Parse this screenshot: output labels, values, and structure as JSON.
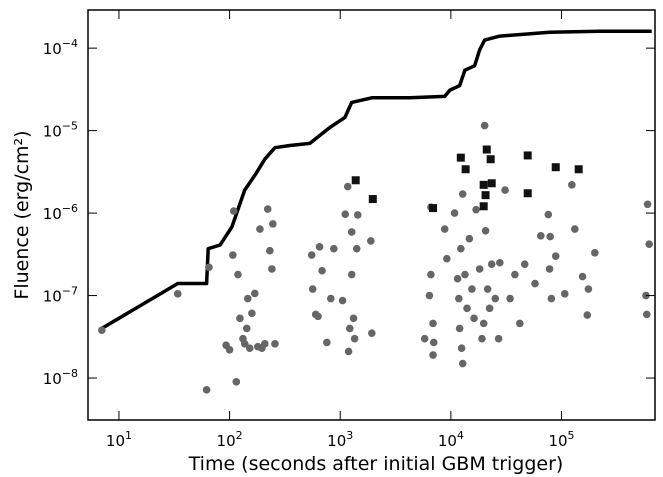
{
  "chart_data": {
    "type": "scatter",
    "x_label": "Time (seconds after initial GBM trigger)",
    "y_label": "Fluence (erg/cm²)",
    "xscale": "log",
    "yscale": "log",
    "xlim": [
      5.25,
      700000
    ],
    "ylim": [
      3.1e-09,
      0.00029
    ],
    "xticks": [
      {
        "value": 10,
        "label": "10^1"
      },
      {
        "value": 100,
        "label": "10^2"
      },
      {
        "value": 1000,
        "label": "10^3"
      },
      {
        "value": 10000,
        "label": "10^4"
      },
      {
        "value": 100000,
        "label": "10^5"
      }
    ],
    "yticks": [
      {
        "value": 1e-08,
        "label": "10^−8"
      },
      {
        "value": 1e-07,
        "label": "10^−7"
      },
      {
        "value": 1e-06,
        "label": "10^−6"
      },
      {
        "value": 1e-05,
        "label": "10^−5"
      },
      {
        "value": 0.0001,
        "label": "10^−4"
      }
    ],
    "series": [
      {
        "kind": "line",
        "color": "#000000",
        "x": [
          7,
          34,
          62,
          64,
          82,
          105,
          137,
          173,
          208,
          257,
          351,
          531,
          805,
          1100,
          1270,
          1930,
          4250,
          8800,
          9800,
          12000,
          13400,
          16400,
          18200,
          20200,
          27700,
          78000,
          221000,
          653000
        ],
        "values": [
          4e-08,
          1.4e-07,
          1.4e-07,
          3.7e-07,
          4.1e-07,
          6.8e-07,
          1.9e-06,
          3e-06,
          4.5e-06,
          6.2e-06,
          6.6e-06,
          7e-06,
          1.09e-05,
          1.44e-05,
          2.2e-05,
          2.5e-05,
          2.5e-05,
          2.6e-05,
          3.1e-05,
          3.5e-05,
          5.4e-05,
          6.1e-05,
          9.5e-05,
          0.000125,
          0.00014,
          0.000156,
          0.00016,
          0.00016
        ]
      },
      {
        "kind": "scatter",
        "marker": "circle",
        "color": "#666666",
        "x": [
          7,
          34,
          62,
          65,
          93,
          100,
          115,
          107,
          109,
          119,
          124,
          132,
          137,
          143,
          146,
          152,
          159,
          169,
          180,
          188,
          196,
          208,
          221,
          231,
          241,
          246,
          257,
          552,
          564,
          600,
          630,
          650,
          685,
          757,
          822,
          875,
          1050,
          1110,
          1170,
          1190,
          1220,
          1270,
          1270,
          1320,
          1350,
          1410,
          1440,
          1930,
          1890,
          5800,
          6600,
          6600,
          6900,
          6900,
          7000,
          6400,
          8800,
          9200,
          10800,
          11500,
          11800,
          12000,
          12500,
          12800,
          12300,
          12800,
          13400,
          14000,
          14700,
          15500,
          16200,
          16900,
          18200,
          19100,
          19800,
          20200,
          20600,
          21500,
          22400,
          23400,
          25200,
          27000,
          27700,
          30900,
          34300,
          37900,
          42000,
          46500,
          57600,
          65000,
          76000,
          78000,
          79000,
          81000,
          88700,
          107000,
          124000,
          132000,
          155000,
          171000,
          175000,
          200000,
          600000,
          620000,
          580000,
          590000
        ],
        "values": [
          3.8e-08,
          1.05e-07,
          7.2e-09,
          2.2e-07,
          2.5e-08,
          2.2e-08,
          9e-09,
          3.1e-07,
          1.06e-06,
          1.8e-07,
          5.3e-08,
          3e-08,
          2.6e-08,
          4e-08,
          9.2e-08,
          2.3e-08,
          6.1e-08,
          1.06e-07,
          2.4e-08,
          6.4e-07,
          2.3e-08,
          2.6e-08,
          1.12e-06,
          3.5e-07,
          2.1e-07,
          7.4e-07,
          2.6e-08,
          3.1e-07,
          1.2e-07,
          5.9e-08,
          5.6e-08,
          3.9e-07,
          2e-07,
          2.7e-08,
          9.2e-08,
          3.7e-07,
          8.7e-08,
          9.7e-07,
          2.1e-06,
          2.1e-08,
          4e-08,
          1.8e-07,
          5.9e-07,
          5.3e-08,
          3e-08,
          3.7e-07,
          9.5e-07,
          3.5e-08,
          4.6e-07,
          3e-08,
          1.18e-06,
          1.8e-07,
          1.9e-08,
          4.6e-08,
          2.7e-08,
          1e-07,
          6.4e-07,
          2.8e-07,
          1e-06,
          1.6e-07,
          9.2e-08,
          4e-08,
          2.3e-08,
          1.5e-08,
          3.7e-07,
          1.7e-06,
          1.8e-07,
          7e-08,
          4.9e-07,
          1.2e-07,
          5.3e-08,
          1.1e-06,
          2.1e-07,
          3e-08,
          4.6e-08,
          1.15e-05,
          6.1e-07,
          1.2e-07,
          7e-08,
          2.4e-07,
          9.2e-08,
          3e-08,
          2.5e-07,
          1.9e-06,
          9.2e-08,
          1.8e-07,
          4.6e-08,
          2.4e-07,
          1.4e-07,
          5.3e-07,
          9.6e-07,
          2.1e-07,
          5.2e-07,
          9.2e-08,
          3e-07,
          1.05e-07,
          2.2e-06,
          6.4e-07,
          1.7e-07,
          5.8e-08,
          1.2e-07,
          3.3e-07,
          1.28e-06,
          4.2e-07,
          1e-07,
          5.9e-08
        ]
      },
      {
        "kind": "scatter",
        "marker": "square",
        "color": "#111111",
        "x": [
          1380,
          1970,
          6900,
          12300,
          13600,
          21100,
          22900,
          19800,
          23400,
          20600,
          19800,
          49500,
          49500,
          88700,
          143000
        ],
        "values": [
          2.5e-06,
          1.48e-06,
          1.15e-06,
          4.7e-06,
          3.4e-06,
          5.9e-06,
          4.5e-06,
          2.2e-06,
          2.3e-06,
          1.65e-06,
          1.21e-06,
          5e-06,
          1.74e-06,
          3.6e-06,
          3.4e-06
        ]
      }
    ]
  }
}
